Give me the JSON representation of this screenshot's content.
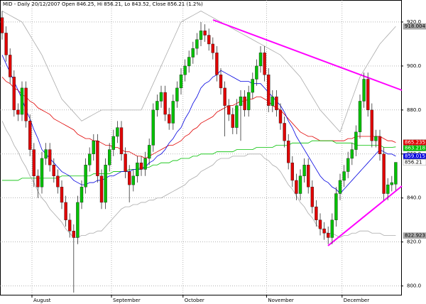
{
  "chart_data": {
    "type": "candlestick",
    "title": "MID - Daily 20/12/2007 Open 846.25, Hi 856.21, Lo 843.52, Close 856.21 (1.2%)",
    "categories": [
      null,
      null,
      null,
      null,
      null,
      null,
      null,
      null,
      "August",
      null,
      null,
      null,
      null,
      null,
      null,
      null,
      null,
      null,
      null,
      null,
      null,
      null,
      null,
      null,
      null,
      null,
      null,
      null,
      "September",
      null,
      null,
      null,
      null,
      null,
      null,
      null,
      null,
      null,
      null,
      null,
      null,
      null,
      null,
      null,
      null,
      null,
      "October",
      null,
      null,
      null,
      null,
      null,
      null,
      null,
      null,
      null,
      null,
      null,
      null,
      null,
      null,
      null,
      null,
      null,
      null,
      null,
      null,
      "November",
      null,
      null,
      null,
      null,
      null,
      null,
      null,
      null,
      null,
      null,
      null,
      null,
      null,
      null,
      null,
      null,
      null,
      null,
      "December",
      null,
      null,
      null,
      null,
      null,
      null,
      null,
      null,
      null,
      null,
      null,
      null,
      null
    ],
    "open": [
      922,
      915,
      905,
      895,
      880,
      878,
      890,
      875,
      862,
      850,
      845,
      858,
      862,
      855,
      850,
      845,
      838,
      830,
      825,
      822,
      838,
      845,
      855,
      860,
      866,
      850,
      838,
      855,
      862,
      868,
      872,
      860,
      852,
      846,
      850,
      856,
      853,
      858,
      864,
      880,
      884,
      888,
      878,
      874,
      884,
      890,
      896,
      900,
      904,
      908,
      912,
      916,
      914,
      910,
      906,
      896,
      890,
      882,
      878,
      872,
      882,
      886,
      880,
      888,
      894,
      900,
      906,
      896,
      882,
      886,
      880,
      874,
      866,
      856,
      848,
      842,
      850,
      855,
      845,
      836,
      830,
      826,
      824,
      822,
      830,
      842,
      848,
      852,
      858,
      862,
      870,
      884,
      894,
      880,
      866,
      868,
      860,
      842,
      846,
      846.25
    ],
    "high": [
      925,
      918,
      908,
      898,
      883,
      893,
      893,
      878,
      865,
      853,
      861,
      865,
      865,
      858,
      853,
      848,
      841,
      833,
      828,
      841,
      848,
      858,
      863,
      869,
      869,
      853,
      858,
      865,
      871,
      875,
      875,
      863,
      855,
      853,
      859,
      859,
      861,
      867,
      883,
      887,
      891,
      891,
      881,
      887,
      893,
      899,
      903,
      907,
      911,
      915,
      920,
      919,
      917,
      913,
      909,
      899,
      893,
      885,
      881,
      885,
      889,
      889,
      891,
      897,
      903,
      909,
      909,
      899,
      889,
      889,
      883,
      877,
      869,
      859,
      851,
      853,
      858,
      858,
      848,
      839,
      833,
      829,
      827,
      833,
      845,
      851,
      855,
      861,
      865,
      873,
      887,
      897,
      897,
      883,
      871,
      871,
      863,
      849,
      850,
      856.21
    ],
    "low": [
      912,
      902,
      892,
      877,
      875,
      875,
      872,
      859,
      845,
      840,
      842,
      855,
      852,
      847,
      842,
      835,
      827,
      822,
      797,
      819,
      835,
      842,
      852,
      857,
      847,
      835,
      835,
      852,
      859,
      865,
      857,
      849,
      838,
      843,
      847,
      850,
      850,
      855,
      861,
      877,
      881,
      875,
      871,
      871,
      881,
      887,
      893,
      897,
      901,
      905,
      909,
      911,
      907,
      903,
      893,
      887,
      868,
      875,
      869,
      869,
      866,
      877,
      877,
      885,
      891,
      897,
      893,
      879,
      879,
      877,
      871,
      863,
      853,
      845,
      839,
      839,
      847,
      842,
      833,
      827,
      823,
      821,
      819,
      819,
      827,
      839,
      845,
      849,
      855,
      859,
      867,
      881,
      877,
      863,
      863,
      857,
      839,
      839,
      843,
      843.52
    ],
    "close": [
      915,
      905,
      895,
      880,
      878,
      890,
      875,
      862,
      850,
      845,
      858,
      862,
      855,
      850,
      845,
      838,
      830,
      825,
      822,
      838,
      845,
      855,
      860,
      866,
      850,
      838,
      855,
      862,
      868,
      872,
      860,
      852,
      846,
      850,
      856,
      853,
      858,
      864,
      880,
      884,
      888,
      878,
      874,
      884,
      890,
      896,
      900,
      904,
      908,
      912,
      916,
      914,
      910,
      906,
      896,
      890,
      882,
      878,
      872,
      882,
      886,
      880,
      888,
      894,
      900,
      906,
      896,
      882,
      886,
      880,
      874,
      866,
      856,
      848,
      842,
      850,
      855,
      845,
      836,
      830,
      826,
      824,
      822,
      830,
      842,
      848,
      852,
      858,
      862,
      870,
      884,
      894,
      880,
      866,
      868,
      860,
      842,
      846,
      847,
      856.21
    ],
    "up_color": "#00c000",
    "down_color": "#e00000",
    "lines": [
      {
        "color": "#aaaaaa",
        "values": [
          925,
          924,
          923,
          922,
          921,
          920,
          917,
          914,
          911,
          908,
          905,
          901,
          897,
          893,
          889,
          885,
          883,
          881,
          879,
          877,
          875,
          876,
          877,
          878,
          879,
          880,
          880,
          880,
          880,
          880,
          880,
          880,
          880,
          880,
          880,
          880,
          884,
          888,
          892,
          896,
          900,
          904,
          908,
          912,
          916,
          920,
          921,
          922,
          923,
          924,
          925,
          924,
          923,
          922,
          921,
          920,
          919,
          918,
          917,
          916,
          915,
          914,
          913,
          912,
          911,
          910,
          909,
          908,
          907,
          906,
          905,
          903,
          901,
          899,
          897,
          895,
          892,
          889,
          886,
          883,
          880,
          878,
          876,
          874,
          872,
          870,
          875,
          880,
          885,
          890,
          895,
          898,
          901,
          904,
          907,
          910,
          912,
          914,
          916,
          918.004
        ]
      },
      {
        "color": "#e00000",
        "values": [
          895,
          893,
          892,
          890,
          889,
          887,
          886,
          884,
          883,
          881,
          880,
          879,
          878,
          876,
          875,
          874,
          873,
          872,
          871,
          869,
          868,
          867,
          867,
          866,
          866,
          865,
          864,
          864,
          863,
          863,
          862,
          861,
          861,
          860,
          859,
          859,
          858,
          859,
          860,
          861,
          862,
          863,
          864,
          864,
          865,
          866,
          868,
          869,
          871,
          872,
          874,
          875,
          876,
          877,
          879,
          880,
          881,
          882,
          882,
          883,
          884,
          884,
          885,
          885,
          886,
          886,
          885,
          884,
          882,
          881,
          880,
          878,
          876,
          874,
          872,
          870,
          869,
          868,
          868,
          867,
          866,
          866,
          866,
          866,
          866,
          866,
          866,
          867,
          867,
          868,
          868,
          868,
          868,
          868,
          868,
          868,
          867,
          866,
          866,
          865.235
        ]
      },
      {
        "color": "#00c000",
        "values": [
          848,
          848,
          848,
          848,
          848,
          849,
          849,
          849,
          849,
          849,
          849,
          849,
          849,
          849,
          849,
          850,
          850,
          850,
          850,
          850,
          850,
          850,
          850,
          851,
          851,
          851,
          851,
          851,
          852,
          852,
          852,
          852,
          853,
          853,
          853,
          854,
          854,
          854,
          855,
          855,
          856,
          856,
          856,
          857,
          857,
          858,
          858,
          858,
          859,
          859,
          860,
          860,
          860,
          860,
          861,
          861,
          861,
          861,
          861,
          862,
          862,
          862,
          862,
          862,
          863,
          863,
          863,
          863,
          863,
          864,
          864,
          864,
          864,
          865,
          865,
          865,
          865,
          865,
          866,
          866,
          866,
          866,
          866,
          866,
          865,
          865,
          865,
          865,
          865,
          864,
          864,
          864,
          864,
          864,
          864,
          864,
          863,
          863,
          863,
          863.218
        ]
      },
      {
        "color": "#0000e0",
        "values": [
          905,
          901,
          897,
          893,
          889,
          885,
          880,
          876,
          871,
          867,
          862,
          860,
          858,
          856,
          854,
          852,
          851,
          850,
          848,
          847,
          846,
          846,
          847,
          847,
          848,
          848,
          849,
          850,
          850,
          851,
          852,
          852,
          852,
          853,
          853,
          853,
          854,
          856,
          857,
          859,
          860,
          862,
          865,
          867,
          870,
          872,
          876,
          879,
          883,
          886,
          890,
          892,
          893,
          895,
          896,
          898,
          897,
          896,
          895,
          894,
          893,
          893,
          893,
          892,
          892,
          892,
          890,
          888,
          886,
          884,
          882,
          879,
          875,
          872,
          868,
          865,
          862,
          859,
          856,
          853,
          850,
          848,
          847,
          845,
          844,
          842,
          844,
          846,
          848,
          850,
          852,
          854,
          856,
          858,
          860,
          862,
          861,
          860,
          860,
          859.015
        ]
      },
      {
        "color": "#aaaaaa",
        "values": [
          875,
          871,
          868,
          864,
          861,
          857,
          854,
          850,
          847,
          843,
          840,
          838,
          835,
          833,
          831,
          829,
          826,
          824,
          822,
          822,
          823,
          823,
          824,
          824,
          825,
          825,
          827,
          829,
          831,
          833,
          835,
          836,
          836,
          837,
          837,
          838,
          838,
          839,
          839,
          840,
          840,
          841,
          842,
          843,
          844,
          845,
          846,
          848,
          849,
          850,
          852,
          853,
          854,
          855,
          857,
          858,
          858,
          858,
          859,
          859,
          859,
          859,
          860,
          860,
          860,
          860,
          858,
          857,
          855,
          854,
          852,
          849,
          846,
          844,
          841,
          838,
          836,
          833,
          831,
          828,
          826,
          825,
          824,
          824,
          823,
          822,
          823,
          823,
          824,
          824,
          825,
          825,
          825,
          824,
          824,
          824,
          823,
          823,
          823,
          822.923
        ]
      }
    ],
    "ylim": [
      796,
      930
    ],
    "yticks": [
      {
        "value": 800,
        "label": "800.0"
      },
      {
        "value": 820,
        "label": "820.0"
      },
      {
        "value": 840,
        "label": "840.0"
      },
      {
        "value": 860,
        "label": "860.0"
      },
      {
        "value": 880,
        "label": "880.0"
      },
      {
        "value": 900,
        "label": "900.0"
      },
      {
        "value": 920,
        "label": "920.0"
      }
    ],
    "grid": true
  }
}
